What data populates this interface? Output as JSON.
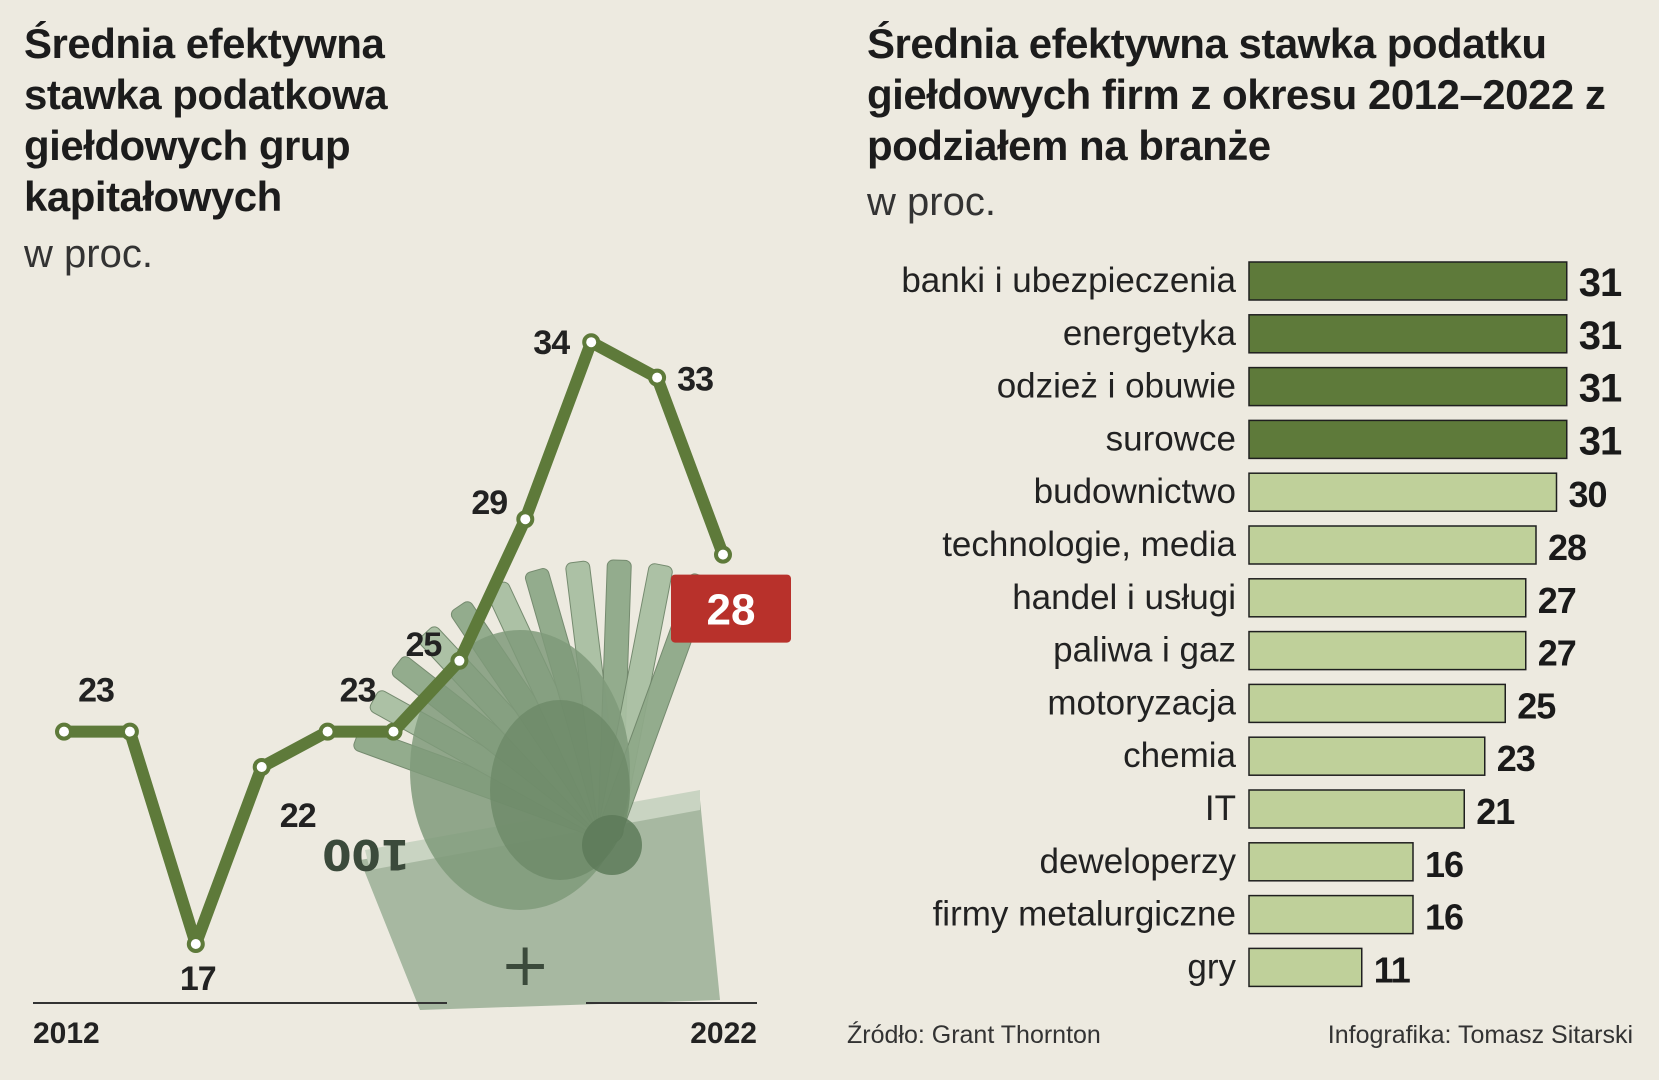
{
  "left_chart": {
    "title": "Średnia efektywna stawka podatkowa giełdowych grup kapitałowych",
    "subtitle": "w proc.",
    "x_start_label": "2012",
    "x_end_label": "2022"
  },
  "right_chart": {
    "title": "Średnia efektywna stawka podatku giełdowych firm z okresu 2012–2022 z podziałem na branże",
    "subtitle": "w proc."
  },
  "footer": {
    "source": "Źródło: Grant Thornton",
    "credit": "Infografika: Tomasz Sitarski"
  },
  "colors": {
    "background": "#edeae0",
    "line": "#5e7a3a",
    "bar_dark": "#5e7a3a",
    "bar_light": "#bfd09a",
    "highlight": "#b8312b"
  },
  "chart_data": [
    {
      "type": "line",
      "x": [
        2012,
        2013,
        2014,
        2015,
        2016,
        2017,
        2018,
        2019,
        2020,
        2021,
        2022
      ],
      "values": [
        23,
        23,
        17,
        22,
        23,
        23,
        25,
        29,
        34,
        33,
        28
      ],
      "labels": [
        "23",
        "",
        "17",
        "22",
        "23",
        "",
        "25",
        "29",
        "34",
        "33",
        "28"
      ],
      "highlight_index": 10
    },
    {
      "type": "bar",
      "orientation": "horizontal",
      "categories": [
        "banki i ubezpieczenia",
        "energetyka",
        "odzież i obuwie",
        "surowce",
        "budownictwo",
        "technologie, media",
        "handel i usługi",
        "paliwa i gaz",
        "motoryzacja",
        "chemia",
        "IT",
        "deweloperzy",
        "firmy metalurgiczne",
        "gry"
      ],
      "values": [
        31,
        31,
        31,
        31,
        30,
        28,
        27,
        27,
        25,
        23,
        21,
        16,
        16,
        11
      ],
      "highlight": [
        true,
        true,
        true,
        true,
        false,
        false,
        false,
        false,
        false,
        false,
        false,
        false,
        false,
        false
      ]
    }
  ]
}
